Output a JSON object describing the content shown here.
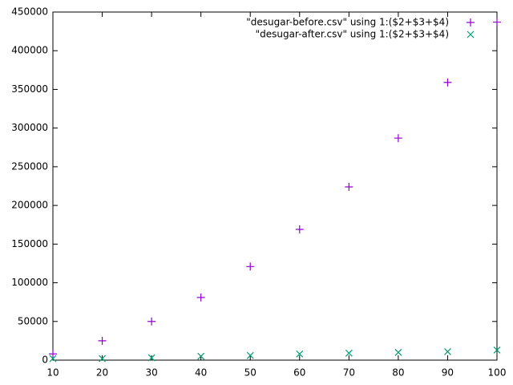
{
  "chart_data": {
    "type": "scatter",
    "x": [
      10,
      20,
      30,
      40,
      50,
      60,
      70,
      80,
      90,
      100
    ],
    "series": [
      {
        "name": "\"desugar-before.csv\" using 1:($2+$3+$4)",
        "color": "#9400d3",
        "marker": "+",
        "values": [
          8000,
          25000,
          50000,
          81000,
          121000,
          169000,
          224000,
          287000,
          359000,
          437000
        ]
      },
      {
        "name": "\"desugar-after.csv\" using 1:($2+$3+$4)",
        "color": "#009e73",
        "marker": "x",
        "values": [
          2000,
          2000,
          3000,
          5000,
          6000,
          8000,
          9000,
          10000,
          11000,
          13000
        ]
      }
    ],
    "xlim": [
      10,
      100
    ],
    "xticks": [
      10,
      20,
      30,
      40,
      50,
      60,
      70,
      80,
      90,
      100
    ],
    "ylim": [
      0,
      450000
    ],
    "yticks": [
      0,
      50000,
      100000,
      150000,
      200000,
      250000,
      300000,
      350000,
      400000,
      450000
    ],
    "legend": "top-right"
  }
}
